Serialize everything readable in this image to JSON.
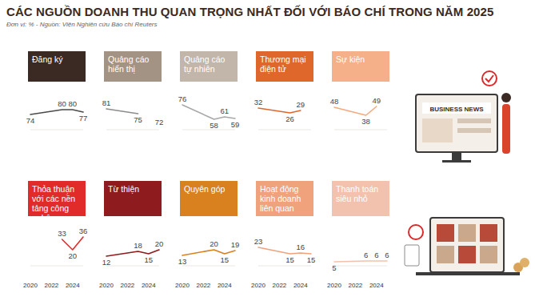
{
  "header": {
    "title": "CÁC NGUỒN DOANH THU QUAN TRỌNG NHẤT ĐỐI VỚI BÁO CHÍ TRONG NĂM 2025",
    "subtitle": "Đơn vị: %  -  Nguồn: Viện Nghiên cứu Báo chí Reuters"
  },
  "illustration": {
    "text": "BUSINESS NEWS"
  },
  "chart_data": [
    {
      "type": "line",
      "title": "Đăng ký",
      "x": [
        2020,
        2023,
        2024,
        2025
      ],
      "values": [
        74,
        80,
        80,
        77
      ],
      "color": "#4a4a4a",
      "xlim": [
        2020,
        2025
      ],
      "ylim": [
        55,
        105
      ],
      "data_labels": true,
      "tick_labels": false
    },
    {
      "type": "line",
      "title": "Quảng cáo hiển thị",
      "x": [
        2020,
        2023,
        2024,
        2025
      ],
      "values": [
        81,
        75,
        null,
        72
      ],
      "color": "#8c8c8c",
      "xlim": [
        2020,
        2025
      ],
      "ylim": [
        55,
        105
      ],
      "data_labels": true,
      "tick_labels": false
    },
    {
      "type": "line",
      "title": "Quảng cáo tự nhiên",
      "x": [
        2020,
        2023,
        2024,
        2025
      ],
      "values": [
        76,
        58,
        61,
        59
      ],
      "color": "#a8a8a8",
      "xlim": [
        2020,
        2025
      ],
      "ylim": [
        45,
        95
      ],
      "data_labels": true,
      "tick_labels": false
    },
    {
      "type": "line",
      "title": "Thương mại điện tử",
      "x": [
        2020,
        2023,
        2024,
        2025
      ],
      "values": [
        32,
        26,
        29,
        null
      ],
      "color": "#e0672b",
      "xlim": [
        2020,
        2025
      ],
      "ylim": [
        5,
        55
      ],
      "data_labels": true,
      "tick_labels": false
    },
    {
      "type": "line",
      "title": "Sự kiện",
      "x": [
        2020,
        2023,
        2024,
        2025
      ],
      "values": [
        48,
        38,
        49,
        null
      ],
      "color": "#f5a97f",
      "xlim": [
        2020,
        2025
      ],
      "ylim": [
        20,
        70
      ],
      "data_labels": true,
      "tick_labels": false
    },
    {
      "type": "line",
      "title": "Thỏa thuận với các nền tảng công nghệ",
      "x": [
        2020,
        2023,
        2024,
        2025
      ],
      "values": [
        null,
        33,
        20,
        36
      ],
      "color": "#e12b2b",
      "xlim": [
        2020,
        2025
      ],
      "ylim": [
        0,
        50
      ],
      "xticks": [
        2020,
        2022,
        2024
      ],
      "data_labels": true,
      "tick_labels": "x"
    },
    {
      "type": "line",
      "title": "Từ thiện",
      "x": [
        2020,
        2023,
        2024,
        2025
      ],
      "values": [
        12,
        18,
        15,
        20
      ],
      "color": "#8e1b1d",
      "xlim": [
        2020,
        2025
      ],
      "ylim": [
        0,
        50
      ],
      "xticks": [
        2020,
        2022,
        2024
      ],
      "data_labels": true,
      "tick_labels": "x"
    },
    {
      "type": "line",
      "title": "Quyên góp",
      "x": [
        2020,
        2023,
        2024,
        2025
      ],
      "values": [
        13,
        20,
        15,
        19
      ],
      "color": "#d9801f",
      "xlim": [
        2020,
        2025
      ],
      "ylim": [
        0,
        50
      ],
      "xticks": [
        2020,
        2022,
        2024
      ],
      "data_labels": true,
      "tick_labels": "x"
    },
    {
      "type": "line",
      "title": "Hoạt động kinh doanh liên quan",
      "x": [
        2020,
        2023,
        2024,
        2025
      ],
      "values": [
        23,
        15,
        16,
        15
      ],
      "color": "#f0a27c",
      "xlim": [
        2020,
        2025
      ],
      "ylim": [
        0,
        50
      ],
      "xticks": [
        2020,
        2022,
        2024
      ],
      "data_labels": true,
      "tick_labels": "x"
    },
    {
      "type": "line",
      "title": "Thanh toán siêu nhỏ",
      "x": [
        2020,
        2023,
        2024,
        2025
      ],
      "values": [
        5,
        6,
        6,
        6
      ],
      "color": "#f3c2ae",
      "xlim": [
        2020,
        2025
      ],
      "ylim": [
        0,
        50
      ],
      "xticks": [
        2020,
        2022,
        2024
      ],
      "data_labels": true,
      "tick_labels": "x"
    }
  ]
}
